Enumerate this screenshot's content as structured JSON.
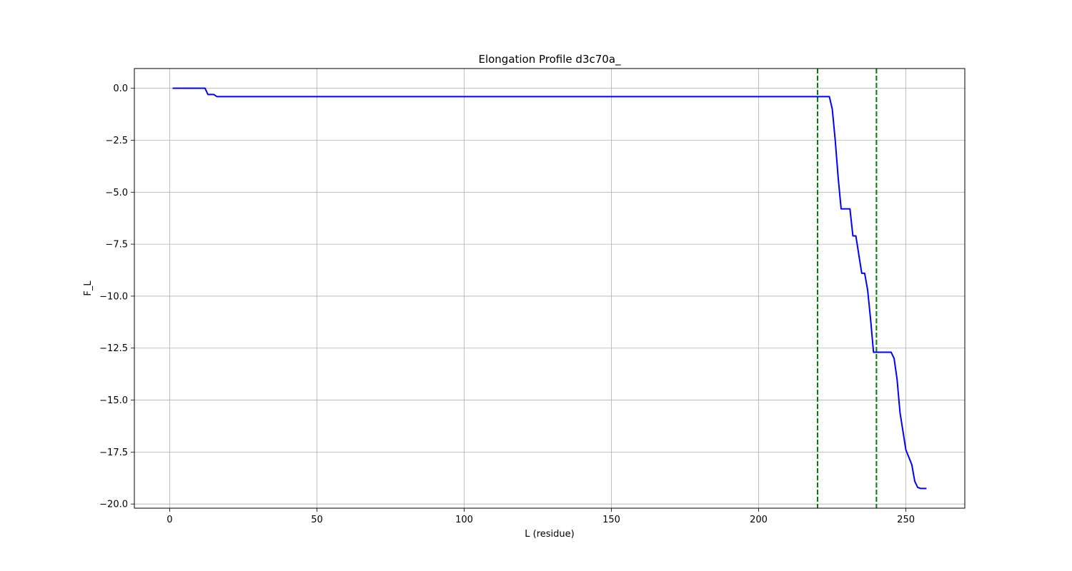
{
  "chart_data": {
    "type": "line",
    "title": "Elongation Profile d3c70a_",
    "xlabel": "L (residue)",
    "ylabel": "F_L",
    "xlim": [
      -12,
      270
    ],
    "ylim": [
      -20.2,
      0.95
    ],
    "xticks": [
      0,
      50,
      100,
      150,
      200,
      250
    ],
    "yticks": [
      0.0,
      -2.5,
      -5.0,
      -7.5,
      -10.0,
      -12.5,
      -15.0,
      -17.5,
      -20.0
    ],
    "ytick_labels": [
      "0.0",
      "−2.5",
      "−5.0",
      "−7.5",
      "−10.0",
      "−12.5",
      "−15.0",
      "−17.5",
      "−20.0"
    ],
    "grid": true,
    "series": [
      {
        "name": "F_L",
        "color": "#0000ff",
        "x": [
          1,
          12,
          13,
          15,
          16,
          220,
          223,
          224,
          225,
          226,
          227,
          228,
          231,
          232,
          233,
          235,
          236,
          237,
          238,
          239,
          240,
          241,
          245,
          246,
          247,
          248,
          250,
          252,
          253,
          254,
          255,
          256,
          257
        ],
        "y": [
          0,
          0,
          -0.3,
          -0.3,
          -0.4,
          -0.4,
          -0.4,
          -0.4,
          -1.0,
          -2.5,
          -4.3,
          -5.8,
          -5.8,
          -7.1,
          -7.1,
          -8.9,
          -8.9,
          -9.7,
          -11.1,
          -12.7,
          -12.7,
          -12.7,
          -12.7,
          -13.0,
          -14.0,
          -15.6,
          -17.4,
          -18.1,
          -18.9,
          -19.2,
          -19.25,
          -19.25,
          -19.25
        ]
      }
    ],
    "vlines": [
      {
        "x": 220,
        "color": "#008000",
        "style": "dashed"
      },
      {
        "x": 240,
        "color": "#008000",
        "style": "dashed"
      }
    ]
  }
}
